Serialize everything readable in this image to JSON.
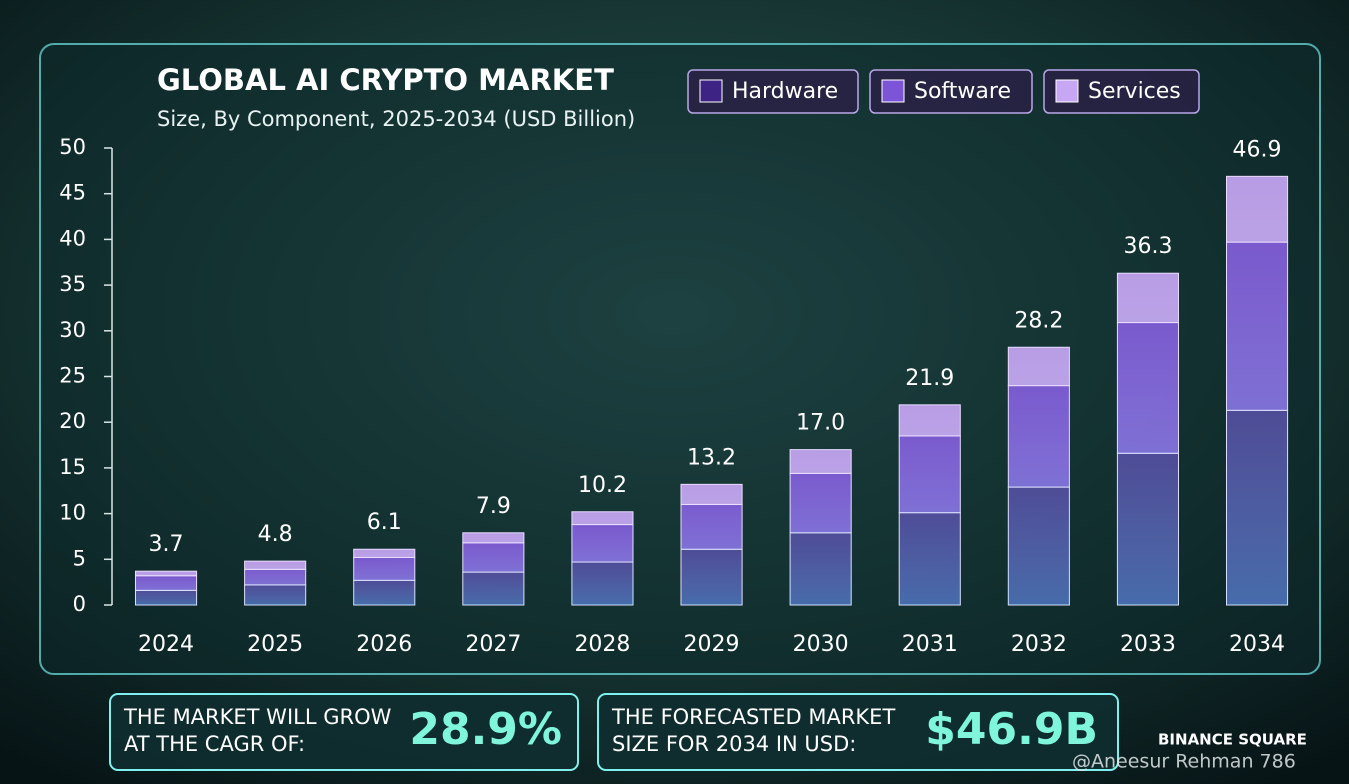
{
  "chart_data": {
    "type": "stacked_bar",
    "title": "GLOBAL AI CRYPTO MARKET",
    "subtitle": "Size, By Component, 2025-2034 (USD Billion)",
    "categories": [
      "2024",
      "2025",
      "2026",
      "2027",
      "2028",
      "2029",
      "2030",
      "2031",
      "2032",
      "2033",
      "2034"
    ],
    "series": [
      {
        "name": "Hardware",
        "color": "#3d2384",
        "values": [
          1.6,
          2.2,
          2.7,
          3.6,
          4.7,
          6.1,
          7.9,
          10.1,
          12.9,
          16.6,
          21.3
        ]
      },
      {
        "name": "Software",
        "color": "#7c54d8",
        "values": [
          1.6,
          1.7,
          2.5,
          3.2,
          4.1,
          4.9,
          6.5,
          8.4,
          11.1,
          14.3,
          18.4
        ]
      },
      {
        "name": "Services",
        "color": "#c7a6f4",
        "values": [
          0.5,
          0.9,
          0.9,
          1.1,
          1.4,
          2.2,
          2.6,
          3.4,
          4.2,
          5.4,
          7.2
        ]
      }
    ],
    "totals": [
      3.7,
      4.8,
      6.1,
      7.9,
      10.2,
      13.2,
      17.0,
      21.9,
      28.2,
      36.3,
      46.9
    ],
    "total_labels": [
      "3.7",
      "4.8",
      "6.1",
      "7.9",
      "10.2",
      "13.2",
      "17.0",
      "21.9",
      "28.2",
      "36.3",
      "46.9"
    ],
    "ylim": [
      0,
      50
    ],
    "yticks": [
      0,
      5,
      10,
      15,
      20,
      25,
      30,
      35,
      40,
      45,
      50
    ],
    "annotations": [
      {
        "lines": [
          "THE MARKET WILL GROW",
          "AT THE CAGR OF:"
        ],
        "value": "28.9%"
      },
      {
        "lines": [
          "THE FORECASTED MARKET",
          "SIZE FOR 2034 IN USD:"
        ],
        "value": "$46.9B"
      }
    ],
    "watermark": {
      "brand": "BINANCE SQUARE",
      "author": "@Aneesur Rehman 786"
    }
  }
}
